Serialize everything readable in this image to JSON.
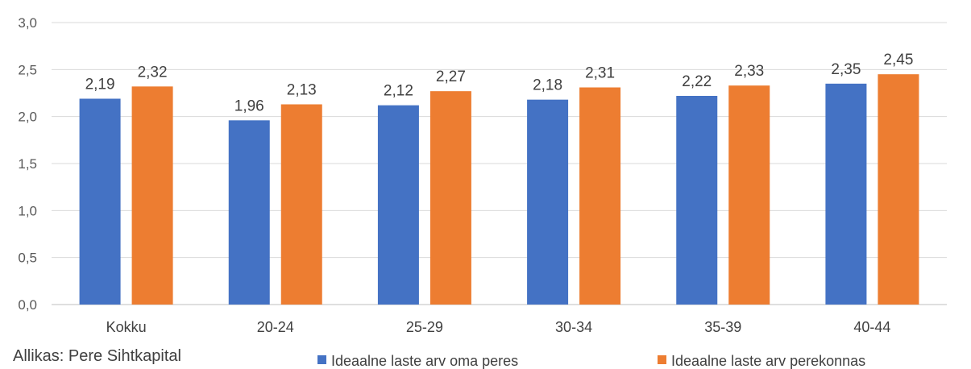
{
  "chart_data": {
    "type": "bar",
    "categories": [
      "Kokku",
      "20-24",
      "25-29",
      "30-34",
      "35-39",
      "40-44"
    ],
    "series": [
      {
        "name": "Ideaalne laste arv oma peres",
        "values": [
          2.19,
          1.96,
          2.12,
          2.18,
          2.22,
          2.35
        ],
        "labels": [
          "2,19",
          "1,96",
          "2,12",
          "2,18",
          "2,22",
          "2,35"
        ],
        "color": "#4472C4"
      },
      {
        "name": "Ideaalne laste arv perekonnas",
        "values": [
          2.32,
          2.13,
          2.27,
          2.31,
          2.33,
          2.45
        ],
        "labels": [
          "2,32",
          "2,13",
          "2,27",
          "2,31",
          "2,33",
          "2,45"
        ],
        "color": "#ED7D31"
      }
    ],
    "ylim": [
      0,
      3
    ],
    "yticks": [
      0,
      0.5,
      1.0,
      1.5,
      2.0,
      2.5,
      3.0
    ],
    "ytick_labels": [
      "0,0",
      "0,5",
      "1,0",
      "1,5",
      "2,0",
      "2,5",
      "3,0"
    ],
    "grid": true,
    "legend": "bottom"
  },
  "source": "Allikas: Pere Sihtkapital"
}
